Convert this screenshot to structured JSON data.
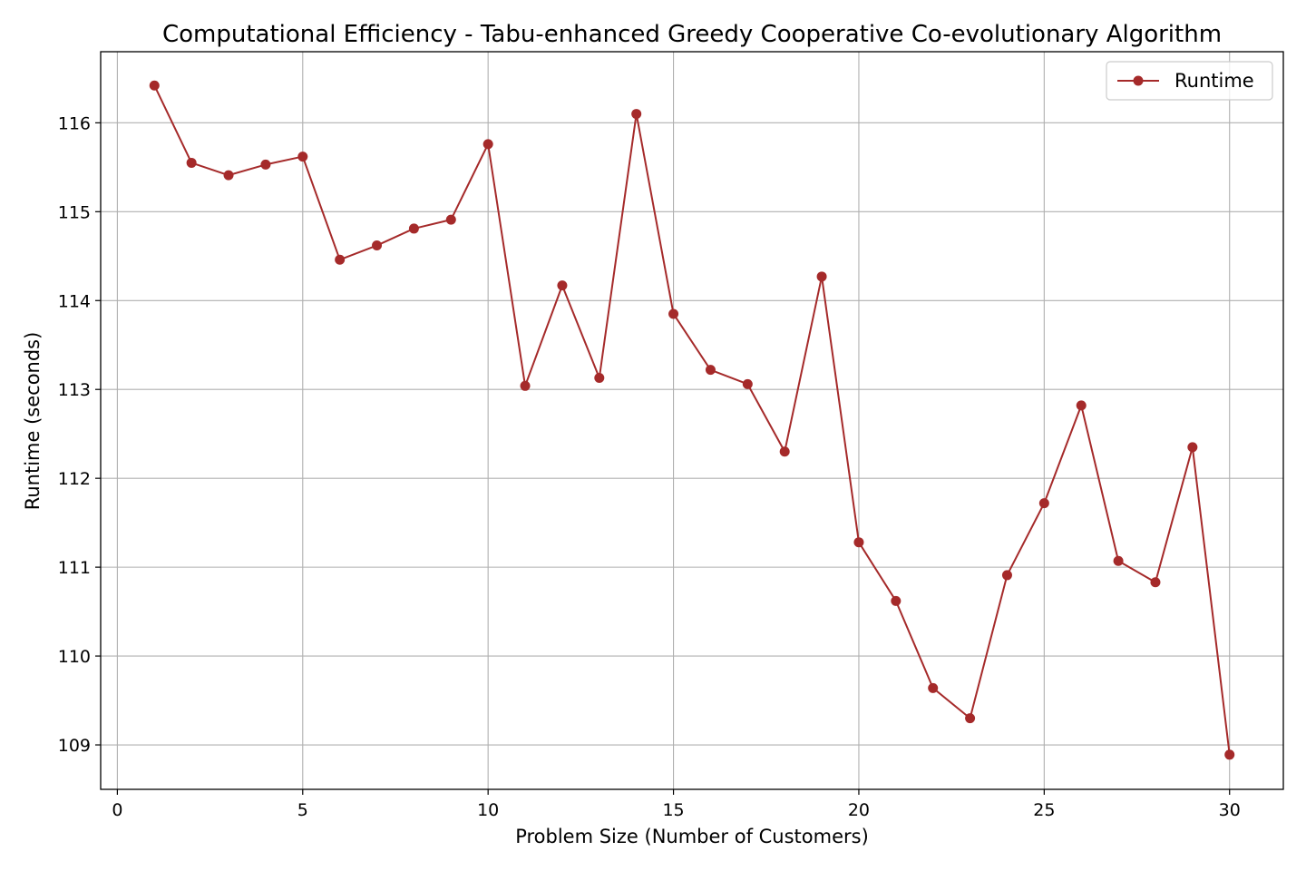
{
  "chart_data": {
    "type": "line",
    "title": "Computational Efficiency - Tabu-enhanced Greedy Cooperative Co-evolutionary Algorithm",
    "xlabel": "Problem Size (Number of Customers)",
    "ylabel": "Runtime (seconds)",
    "xlim": [
      -0.45,
      31.45
    ],
    "ylim": [
      108.5,
      116.8
    ],
    "xticks": [
      0,
      5,
      10,
      15,
      20,
      25,
      30
    ],
    "yticks": [
      109,
      110,
      111,
      112,
      113,
      114,
      115,
      116
    ],
    "grid": true,
    "legend_position": "top-right",
    "series": [
      {
        "name": "Runtime",
        "color": "#a52a2a",
        "marker": "circle",
        "x": [
          1,
          2,
          3,
          4,
          5,
          6,
          7,
          8,
          9,
          10,
          11,
          12,
          13,
          14,
          15,
          16,
          17,
          18,
          19,
          20,
          21,
          22,
          23,
          24,
          25,
          26,
          27,
          28,
          29,
          30
        ],
        "y": [
          116.42,
          115.55,
          115.41,
          115.53,
          115.62,
          114.46,
          114.62,
          114.81,
          114.91,
          115.76,
          113.04,
          114.17,
          113.13,
          116.1,
          113.85,
          113.22,
          113.06,
          112.3,
          114.27,
          111.28,
          110.62,
          109.64,
          109.3,
          110.91,
          111.72,
          112.82,
          111.07,
          110.83,
          112.35,
          108.89
        ]
      }
    ]
  }
}
